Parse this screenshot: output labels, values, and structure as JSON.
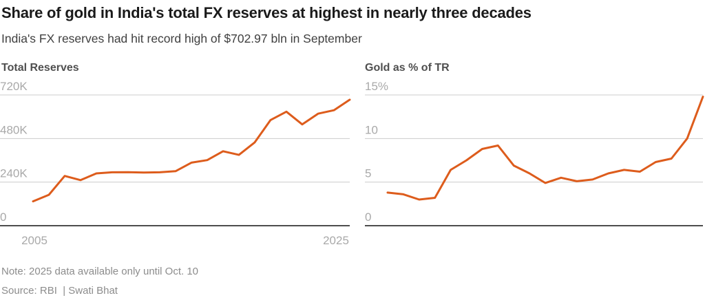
{
  "header": {
    "title": "Share of gold in India's total FX reserves at highest in nearly three decades",
    "subtitle": "India's FX reserves had hit record high of $702.97 bln in September"
  },
  "footer": {
    "note": "Note: 2025 data available only until Oct. 10",
    "source": "Source: RBI  | Swati Bhat"
  },
  "colors": {
    "line": "#dd5c1c",
    "grid": "#cccccc",
    "axis": "#4d4d4d",
    "tick_label": "#a9a9a9"
  },
  "chart_data": [
    {
      "type": "line",
      "title": "Total Reserves",
      "ylabel": "",
      "xlabel": "",
      "x": [
        2005,
        2006,
        2007,
        2008,
        2009,
        2010,
        2011,
        2012,
        2013,
        2014,
        2015,
        2016,
        2017,
        2018,
        2019,
        2020,
        2021,
        2022,
        2023,
        2024,
        2025
      ],
      "values": [
        134,
        170,
        274,
        251,
        288,
        294,
        295,
        293,
        294,
        300,
        347,
        361,
        410,
        390,
        459,
        582,
        628,
        558,
        617,
        636,
        694
      ],
      "values_unit": "K (USD million)",
      "ylim": [
        0,
        720
      ],
      "yticks": {
        "values": [
          720,
          480,
          240,
          0
        ],
        "labels": [
          "720K",
          "480K",
          "240K",
          "0"
        ]
      },
      "xtick_labels": [
        "2005",
        "2025"
      ],
      "grid": "horizontal",
      "legend": "none"
    },
    {
      "type": "line",
      "title": "Gold as % of TR",
      "ylabel": "",
      "xlabel": "",
      "x": [
        2005,
        2006,
        2007,
        2008,
        2009,
        2010,
        2011,
        2012,
        2013,
        2014,
        2015,
        2016,
        2017,
        2018,
        2019,
        2020,
        2021,
        2022,
        2023,
        2024,
        2025
      ],
      "values": [
        3.8,
        3.6,
        3.0,
        3.2,
        6.4,
        7.5,
        8.8,
        9.2,
        6.9,
        6.0,
        4.9,
        5.5,
        5.1,
        5.3,
        6.0,
        6.4,
        6.2,
        7.3,
        7.7,
        10.0,
        14.8
      ],
      "values_unit": "%",
      "ylim": [
        0,
        15
      ],
      "yticks": {
        "values": [
          15,
          10,
          5,
          0
        ],
        "labels": [
          "15%",
          "10",
          "5",
          "0"
        ]
      },
      "xtick_labels": [],
      "grid": "horizontal",
      "legend": "none"
    }
  ]
}
